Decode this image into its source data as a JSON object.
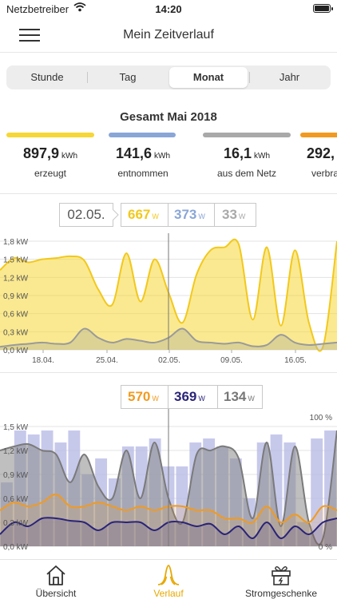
{
  "status_bar": {
    "carrier": "Netzbetreiber",
    "time": "14:20"
  },
  "header": {
    "title": "Mein Zeitverlauf"
  },
  "segments": [
    {
      "label": "Stunde",
      "active": false
    },
    {
      "label": "Tag",
      "active": false
    },
    {
      "label": "Monat",
      "active": true
    },
    {
      "label": "Jahr",
      "active": false
    }
  ],
  "summary": {
    "title": "Gesamt Mai 2018",
    "metrics": [
      {
        "value": "897,9",
        "unit": "kWh",
        "label": "erzeugt",
        "color": "#f6d735"
      },
      {
        "value": "141,6",
        "unit": "kWh",
        "label": "entnommen",
        "color": "#8aa6d6"
      },
      {
        "value": "16,1",
        "unit": "kWh",
        "label": "aus dem Netz",
        "color": "#a9a9a9"
      },
      {
        "value": "292,",
        "unit": "",
        "label": "verbra",
        "color": "#f29a1f"
      }
    ]
  },
  "chart1_readout": {
    "date": "02.05.",
    "values": [
      {
        "value": "667",
        "unit": "W",
        "color": "#f2c81c"
      },
      {
        "value": "373",
        "unit": "W",
        "color": "#8aa6d6"
      },
      {
        "value": "33",
        "unit": "W",
        "color": "#a9a9a9"
      }
    ]
  },
  "chart2_readout": {
    "values": [
      {
        "value": "570",
        "unit": "W",
        "color": "#f29a1f"
      },
      {
        "value": "369",
        "unit": "W",
        "color": "#2a2478"
      },
      {
        "value": "134",
        "unit": "W",
        "color": "#777777"
      }
    ]
  },
  "chart_data": [
    {
      "type": "area",
      "ylim": [
        0,
        1.8
      ],
      "y_ticks": [
        "1,8 kW",
        "1,5 kW",
        "1,2 kW",
        "0,9 kW",
        "0,6 kW",
        "0,3 kW",
        "0,0 kW"
      ],
      "x_ticks": [
        "18.04.",
        "25.04.",
        "02.05.",
        "09.05.",
        "16.05."
      ],
      "x": [
        0,
        3,
        6,
        9,
        12,
        15,
        18,
        21,
        24,
        27,
        30,
        33,
        36,
        39,
        42,
        45,
        48,
        51,
        54,
        57,
        60,
        63,
        66,
        69,
        72
      ],
      "series": [
        {
          "color": "#f6d735",
          "values": [
            1.32,
            1.52,
            1.45,
            1.5,
            1.52,
            1.55,
            1.48,
            1.0,
            0.75,
            1.6,
            0.8,
            1.5,
            0.95,
            0.45,
            1.25,
            1.65,
            1.7,
            1.75,
            0.5,
            1.7,
            0.4,
            1.65,
            0.45,
            0.05,
            1.8
          ]
        },
        {
          "color": "#b9b59a",
          "values": [
            0.05,
            0.08,
            0.1,
            0.12,
            0.1,
            0.12,
            0.35,
            0.2,
            0.12,
            0.18,
            0.15,
            0.12,
            0.2,
            0.35,
            0.15,
            0.12,
            0.1,
            0.12,
            0.06,
            0.08,
            0.25,
            0.12,
            0.08,
            0.1,
            0.12
          ]
        }
      ]
    },
    {
      "type": "line",
      "ylim": [
        0,
        1.5
      ],
      "y_ticks": [
        "1,5 kW",
        "1,2 kW",
        "0,9 kW",
        "0,6 kW",
        "0,3 kW",
        "0,0 kW"
      ],
      "y2_ticks": [
        "100 %",
        "0 %"
      ],
      "x": [
        0,
        3,
        6,
        9,
        12,
        15,
        18,
        21,
        24,
        27,
        30,
        33,
        36,
        39,
        42,
        45,
        48,
        51,
        54,
        57,
        60,
        63,
        66,
        69,
        72
      ],
      "bars": [
        0.8,
        1.45,
        1.4,
        1.45,
        1.3,
        1.45,
        0.9,
        1.1,
        0.85,
        1.25,
        1.25,
        1.35,
        1.0,
        1.0,
        1.3,
        1.35,
        1.25,
        1.1,
        0.6,
        1.3,
        1.4,
        1.3,
        0.3,
        1.35,
        1.45
      ],
      "series": [
        {
          "color": "#7a7a7a",
          "values": [
            1.2,
            1.25,
            1.28,
            1.2,
            1.15,
            0.8,
            1.15,
            0.75,
            0.6,
            1.2,
            0.6,
            1.3,
            0.6,
            0.3,
            1.15,
            1.2,
            1.25,
            1.1,
            0.35,
            1.3,
            0.25,
            1.25,
            0.3,
            0.1,
            1.45
          ]
        },
        {
          "color": "#f29a1f",
          "values": [
            0.45,
            0.55,
            0.5,
            0.55,
            0.65,
            0.5,
            0.5,
            0.55,
            0.5,
            0.45,
            0.5,
            0.45,
            0.5,
            0.5,
            0.45,
            0.45,
            0.35,
            0.35,
            0.3,
            0.5,
            0.3,
            0.4,
            0.3,
            0.5,
            0.45
          ]
        },
        {
          "color": "#2a2478",
          "values": [
            0.15,
            0.3,
            0.25,
            0.35,
            0.35,
            0.32,
            0.3,
            0.2,
            0.3,
            0.3,
            0.3,
            0.2,
            0.3,
            0.3,
            0.25,
            0.28,
            0.15,
            0.25,
            0.1,
            0.3,
            0.1,
            0.25,
            0.15,
            0.3,
            0.35
          ]
        }
      ]
    }
  ],
  "tabs": [
    {
      "label": "Übersicht",
      "icon": "home-icon",
      "active": false
    },
    {
      "label": "Verlauf",
      "icon": "curve-icon",
      "active": true
    },
    {
      "label": "Stromgeschenke",
      "icon": "gift-icon",
      "active": false
    }
  ]
}
